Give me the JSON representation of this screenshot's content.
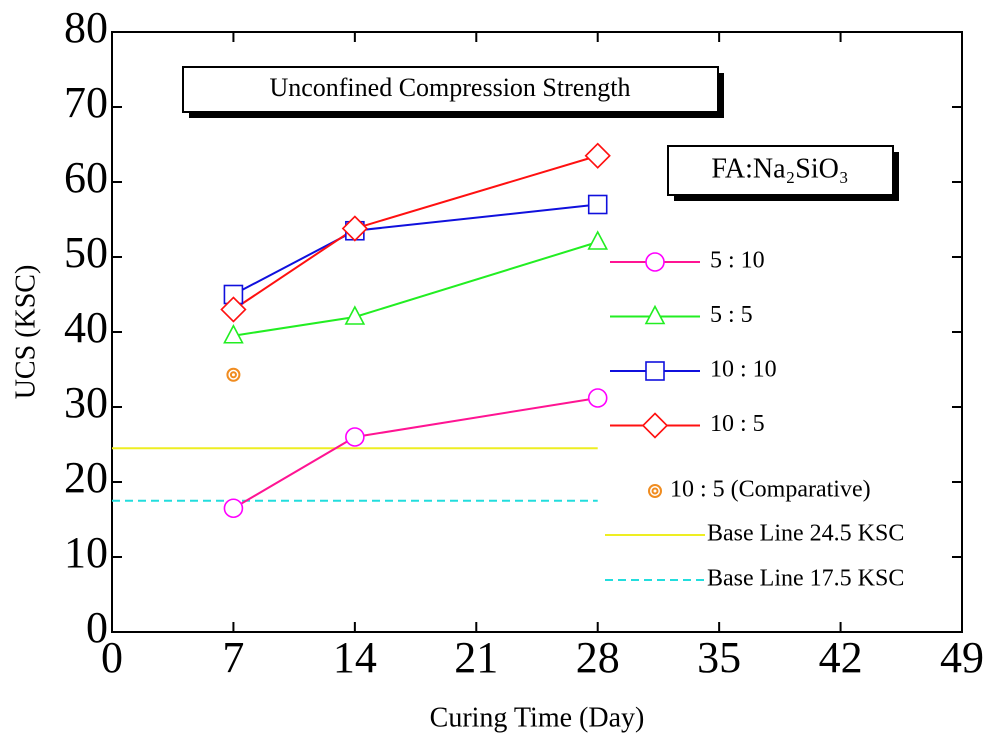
{
  "chart_data": {
    "type": "line",
    "x_label": "Curing Time (Day)",
    "y_label": "UCS (KSC)",
    "title": "Unconfined Compression Strength",
    "annotation": "FA:Na₂SiO₃",
    "x": [
      7,
      14,
      28
    ],
    "series": [
      {
        "name": "5 : 10",
        "color": "#ff1493",
        "marker_color": "#ff00ff",
        "marker": "circle",
        "values": [
          16.5,
          26,
          31.2
        ]
      },
      {
        "name": "5 : 5",
        "color": "#22ee22",
        "marker_color": "#22ee22",
        "marker": "triangle",
        "values": [
          39.5,
          42,
          52
        ]
      },
      {
        "name": "10 : 10",
        "color": "#1010dd",
        "marker_color": "#1010dd",
        "marker": "square",
        "values": [
          45,
          53.5,
          57
        ]
      },
      {
        "name": "10 : 5",
        "color": "#ff1010",
        "marker_color": "#ff1010",
        "marker": "diamond",
        "values": [
          43,
          53.8,
          63.5
        ]
      }
    ],
    "points": [
      {
        "name": "10 : 5  (Comparative)",
        "color": "#f08c20",
        "marker": "bullseye",
        "x": [
          7
        ],
        "values": [
          34.3
        ]
      }
    ],
    "reference_lines": [
      {
        "name": "Base Line 24.5 KSC",
        "value": 24.5,
        "color": "#eeee22",
        "dashed": false,
        "x": [
          0,
          28
        ]
      },
      {
        "name": "Base Line 17.5 KSC",
        "value": 17.5,
        "color": "#22dddd",
        "dashed": true,
        "x": [
          0,
          28
        ]
      }
    ],
    "xlim": [
      0,
      49
    ],
    "xticks": [
      0,
      7,
      14,
      21,
      28,
      35,
      42,
      49
    ],
    "ylim": [
      0,
      80
    ],
    "yticks": [
      0,
      10,
      20,
      30,
      40,
      50,
      60,
      70,
      80
    ]
  }
}
